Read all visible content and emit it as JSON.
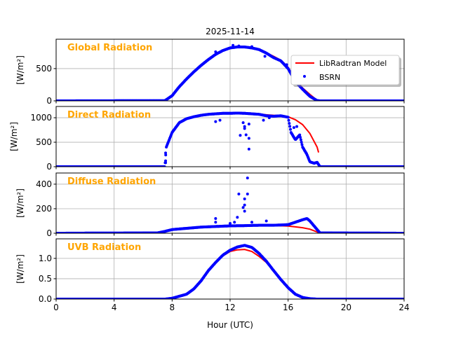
{
  "chart_data": {
    "type": "line",
    "title": "2025-11-14",
    "xlabel": "Hour (UTC)",
    "xlim": [
      0,
      24
    ],
    "xticks": [
      0,
      4,
      8,
      12,
      16,
      20,
      24
    ],
    "grid": true,
    "legend": {
      "placement": "upper-right of first panel",
      "entries": [
        "LibRadtran Model",
        "BSRN"
      ]
    },
    "colors": {
      "model": "#ff0000",
      "bsrn": "#0000ff",
      "label": "#ffa500"
    },
    "panels": [
      {
        "name": "Global Radiation",
        "ylabel": "[W/m²]",
        "ylim": [
          0,
          955
        ],
        "yticks": [
          0,
          500
        ],
        "series": [
          {
            "name": "LibRadtran Model",
            "x": [
              0,
              7.5,
              8,
              8.5,
              9,
              9.5,
              10,
              10.5,
              11,
              11.5,
              12,
              12.5,
              13,
              13.5,
              14,
              14.5,
              15,
              15.5,
              16,
              16.5,
              17,
              17.5,
              18,
              18.2,
              24
            ],
            "y": [
              0,
              0,
              80,
              220,
              340,
              450,
              550,
              640,
              720,
              780,
              815,
              830,
              830,
              815,
              790,
              745,
              690,
              630,
              520,
              320,
              200,
              100,
              10,
              0,
              0
            ]
          },
          {
            "name": "BSRN",
            "x": [
              0,
              7.5,
              8,
              8.5,
              9,
              9.5,
              10,
              10.5,
              11,
              11.5,
              12,
              12.5,
              13,
              13.5,
              14,
              14.5,
              15,
              15.5,
              16,
              16.5,
              17,
              17.5,
              18,
              18.2,
              24
            ],
            "y": [
              0,
              3,
              80,
              220,
              340,
              450,
              550,
              640,
              720,
              780,
              820,
              835,
              835,
              820,
              795,
              740,
              670,
              620,
              500,
              300,
              180,
              70,
              5,
              0,
              0
            ],
            "extra_points": [
              [
                11,
                760
              ],
              [
                12.2,
                860
              ],
              [
                12.6,
                850
              ],
              [
                13.5,
                840
              ],
              [
                14.4,
                690
              ],
              [
                15.9,
                560
              ]
            ]
          }
        ]
      },
      {
        "name": "Direct Radiation",
        "ylabel": "[W/m²]",
        "ylim": [
          0,
          1230
        ],
        "yticks": [
          0,
          500,
          1000
        ],
        "series": [
          {
            "name": "LibRadtran Model",
            "x": [
              7.6,
              8,
              8.5,
              9,
              9.5,
              10,
              10.5,
              11,
              11.5,
              12,
              12.5,
              13,
              13.5,
              14,
              14.5,
              15,
              15.5,
              16,
              16.5,
              17,
              17.5,
              18,
              18.1
            ],
            "y": [
              380,
              700,
              900,
              980,
              1020,
              1050,
              1070,
              1080,
              1090,
              1090,
              1095,
              1090,
              1085,
              1075,
              1060,
              1050,
              1045,
              1020,
              960,
              860,
              680,
              400,
              290
            ]
          },
          {
            "name": "BSRN",
            "x": [
              0,
              7.5,
              7.6,
              8,
              8.5,
              9,
              9.5,
              10,
              10.5,
              11,
              11.5,
              12,
              12.5,
              13,
              13.5,
              14,
              14.5,
              15,
              15.5,
              16,
              16.2,
              16.5,
              16.8,
              17,
              17.3,
              17.5,
              17.8,
              18,
              18.2,
              24
            ],
            "y": [
              0,
              0,
              400,
              700,
              900,
              980,
              1020,
              1050,
              1070,
              1080,
              1090,
              1090,
              1095,
              1090,
              1080,
              1070,
              1040,
              1030,
              1040,
              1010,
              700,
              550,
              650,
              400,
              250,
              100,
              70,
              90,
              0,
              0
            ],
            "extra_points": [
              [
                7.55,
                120
              ],
              [
                7.55,
                80
              ],
              [
                7.55,
                280
              ],
              [
                11,
                920
              ],
              [
                11.3,
                950
              ],
              [
                12.7,
                640
              ],
              [
                12.9,
                900
              ],
              [
                13,
                820
              ],
              [
                13,
                780
              ],
              [
                13.1,
                650
              ],
              [
                13.3,
                580
              ],
              [
                13.3,
                360
              ],
              [
                13.3,
                870
              ],
              [
                14.3,
                950
              ],
              [
                14.7,
                1000
              ],
              [
                16.4,
                800
              ],
              [
                16.6,
                820
              ]
            ]
          }
        ]
      },
      {
        "name": "Diffuse Radiation",
        "ylabel": "[W/m²]",
        "ylim": [
          0,
          491
        ],
        "yticks": [
          0,
          200,
          400
        ],
        "series": [
          {
            "name": "LibRadtran Model",
            "x": [
              0,
              7,
              7.5,
              8,
              9,
              10,
              11,
              12,
              13,
              14,
              15,
              16,
              16.5,
              17,
              17.5,
              18,
              18.2,
              24
            ],
            "y": [
              0,
              0,
              15,
              30,
              40,
              50,
              55,
              60,
              62,
              65,
              63,
              58,
              52,
              45,
              33,
              10,
              0,
              0
            ]
          },
          {
            "name": "BSRN",
            "x": [
              0,
              7,
              7.5,
              8,
              9,
              10,
              11,
              12,
              13,
              14,
              15,
              16,
              16.5,
              17,
              17.3,
              17.5,
              18,
              18.2,
              24
            ],
            "y": [
              0,
              3,
              15,
              30,
              40,
              50,
              55,
              60,
              62,
              65,
              65,
              70,
              90,
              110,
              120,
              100,
              30,
              3,
              0
            ],
            "extra_points": [
              [
                13.2,
                450
              ],
              [
                12.6,
                320
              ],
              [
                13.2,
                320
              ],
              [
                13,
                280
              ],
              [
                13,
                230
              ],
              [
                13,
                180
              ],
              [
                12.9,
                210
              ],
              [
                11,
                120
              ],
              [
                11,
                90
              ],
              [
                12.5,
                130
              ],
              [
                13.5,
                90
              ],
              [
                14.5,
                100
              ],
              [
                12,
                80
              ],
              [
                12.3,
                90
              ]
            ]
          }
        ]
      },
      {
        "name": "UVB Radiation",
        "ylabel": "[W/m²]",
        "ylim": [
          0,
          1.48
        ],
        "yticks": [
          0.0,
          0.5,
          1.0
        ],
        "series": [
          {
            "name": "LibRadtran Model",
            "x": [
              0,
              7.5,
              8,
              9,
              9.5,
              10,
              10.5,
              11,
              11.5,
              12,
              12.5,
              13,
              13.5,
              14,
              14.5,
              15,
              15.5,
              16,
              16.5,
              17,
              17.5,
              18,
              24
            ],
            "y": [
              0,
              0,
              0.02,
              0.12,
              0.25,
              0.45,
              0.7,
              0.9,
              1.06,
              1.17,
              1.21,
              1.22,
              1.17,
              1.05,
              0.9,
              0.7,
              0.48,
              0.28,
              0.12,
              0.04,
              0.01,
              0,
              0
            ]
          },
          {
            "name": "BSRN",
            "x": [
              0,
              7.5,
              8,
              9,
              9.5,
              10,
              10.5,
              11,
              11.5,
              12,
              12.5,
              13,
              13.5,
              14,
              14.5,
              15,
              15.5,
              16,
              16.5,
              17,
              17.5,
              18,
              24
            ],
            "y": [
              0,
              0,
              0.02,
              0.12,
              0.25,
              0.45,
              0.7,
              0.9,
              1.08,
              1.2,
              1.28,
              1.32,
              1.27,
              1.12,
              0.93,
              0.7,
              0.48,
              0.28,
              0.12,
              0.04,
              0.01,
              0,
              0
            ],
            "extra_points": []
          }
        ]
      }
    ]
  }
}
